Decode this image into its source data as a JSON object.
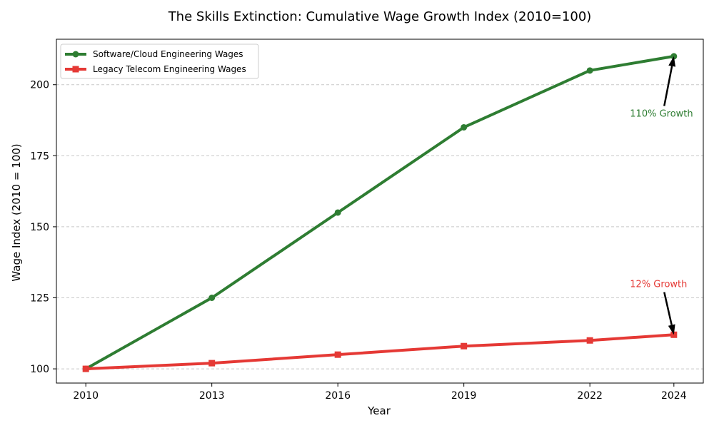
{
  "chart_data": {
    "type": "line",
    "title": "The Skills Extinction: Cumulative Wage Growth Index (2010=100)",
    "xlabel": "Year",
    "ylabel": "Wage Index (2010 = 100)",
    "xlim": [
      2009.3,
      2024.7
    ],
    "ylim": [
      95,
      216
    ],
    "xticks": [
      2010,
      2013,
      2016,
      2019,
      2022,
      2024
    ],
    "yticks": [
      100,
      125,
      150,
      175,
      200
    ],
    "grid": "y-dashed",
    "legend_position": "top-left",
    "x": [
      2010,
      2013,
      2016,
      2019,
      2022,
      2024
    ],
    "series": [
      {
        "name": "Software/Cloud Engineering Wages",
        "marker": "circle",
        "color": "#2e7d32",
        "values": [
          100,
          125,
          155,
          185,
          205,
          210
        ]
      },
      {
        "name": "Legacy Telecom Engineering Wages",
        "marker": "square",
        "color": "#e53935",
        "values": [
          100,
          102,
          105,
          108,
          110,
          112
        ]
      }
    ],
    "annotations": [
      {
        "text": "110% Growth",
        "x": 2024,
        "y": 210,
        "text_x": 2023.6,
        "text_y": 190,
        "color": "#2e7d32"
      },
      {
        "text": "12% Growth",
        "x": 2024,
        "y": 112,
        "text_x": 2023.6,
        "text_y": 130,
        "color": "#e53935"
      }
    ]
  }
}
